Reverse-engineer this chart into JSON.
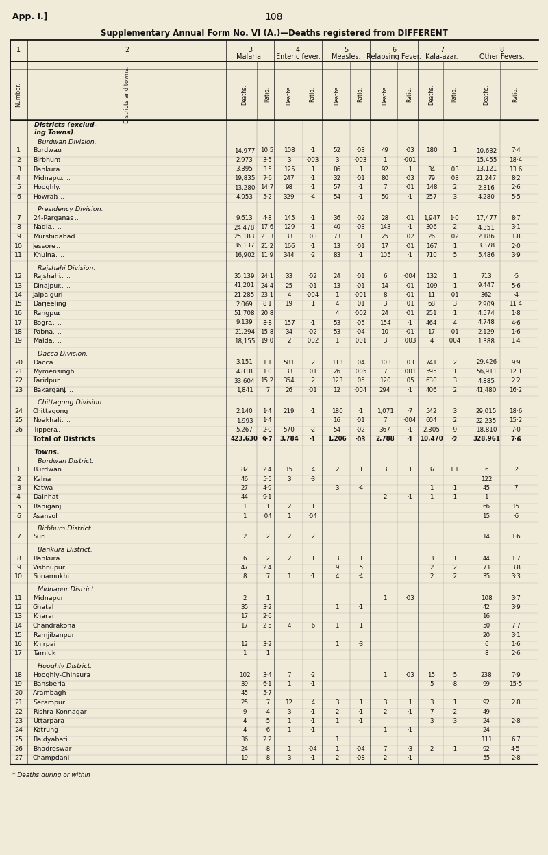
{
  "page_header_left": "App. I.]",
  "page_header_center": "108",
  "title": "Supplementary Annual Form No. VI (A.)—Deaths registered from DIFFERENT",
  "bg_color": "#f0ead8",
  "text_color": "#111111",
  "rows": [
    {
      "num": "1",
      "name": "Burdwan",
      "dots": true,
      "data": [
        "14,977",
        "10·5",
        "108",
        "·1",
        "52",
        "·03",
        "49",
        "·03",
        "180",
        "·1",
        "10,632",
        "7·4"
      ]
    },
    {
      "num": "2",
      "name": "Birbhum",
      "dots": true,
      "data": [
        "2,973",
        "3·5",
        "3",
        "·003",
        "3",
        "·003",
        "1",
        "·001",
        "",
        "",
        "15,455",
        "18·4"
      ]
    },
    {
      "num": "3",
      "name": "Bankura",
      "dots": true,
      "data": [
        "3,395",
        "3·5",
        "125",
        "·1",
        "86",
        "·1",
        "92",
        "·1",
        "34",
        "·03",
        "13,121",
        "13·6"
      ]
    },
    {
      "num": "4",
      "name": "Midnapur",
      "dots": true,
      "data": [
        "19,835",
        "7·6",
        "247",
        "·1",
        "32",
        "·01",
        "80",
        "·03",
        "79",
        "·03",
        "21,247",
        "8·2"
      ]
    },
    {
      "num": "5",
      "name": "Hooghly",
      "dots": true,
      "data": [
        "13,280",
        "14·7",
        "98",
        "·1",
        "57",
        "·1",
        "7",
        "·01",
        "148",
        "·2",
        "2,316",
        "2·6"
      ]
    },
    {
      "num": "6",
      "name": "Howrah",
      "dots": true,
      "data": [
        "4,053",
        "5·2",
        "329",
        "·4",
        "54",
        "·1",
        "50",
        "·1",
        "257",
        "·3",
        "4,280",
        "5·5"
      ]
    },
    {
      "num": "7",
      "name": "24-Parganas",
      "dots": true,
      "data": [
        "9,613",
        "4·8",
        "145",
        "·1",
        "36",
        "·02",
        "28",
        "·01",
        "1,947",
        "1·0",
        "17,477",
        "8·7"
      ]
    },
    {
      "num": "8",
      "name": "Nadia",
      "dots": true,
      "data": [
        "24,478",
        "17·6",
        "129",
        "·1",
        "40",
        "·03",
        "143",
        "·1",
        "306",
        "·2",
        "4,351",
        "3·1"
      ]
    },
    {
      "num": "9",
      "name": "Murshidabad",
      "dots": true,
      "data": [
        "25,183",
        "21·3",
        "33",
        "·03",
        "73",
        "·1",
        "25",
        "·02",
        "26",
        "·02",
        "2,186",
        "1·8"
      ]
    },
    {
      "num": "10",
      "name": "Jessore",
      "dots": true,
      "data": [
        "36,137",
        "21·2",
        "166",
        "·1",
        "13",
        "·01",
        "17",
        "·01",
        "167",
        "·1",
        "3,378",
        "2·0"
      ]
    },
    {
      "num": "11",
      "name": "Khulna",
      "dots": true,
      "data": [
        "16,902",
        "11·9",
        "344",
        "·2",
        "83",
        "·1",
        "105",
        "·1",
        "710",
        "·5",
        "5,486",
        "3·9"
      ]
    },
    {
      "num": "12",
      "name": "Rajshahi",
      "dots": true,
      "data": [
        "35,139",
        "24·1",
        "33",
        "·02",
        "24",
        "·01",
        "6",
        "·004",
        "132",
        "·1",
        "713",
        "·5"
      ]
    },
    {
      "num": "13",
      "name": "Dinajpur",
      "dots": true,
      "data": [
        "41,201",
        "24·4",
        "25",
        "·01",
        "13",
        "·01",
        "14",
        "·01",
        "109",
        "·1",
        "9,447",
        "5·6"
      ]
    },
    {
      "num": "14",
      "name": "Jalpaiguri",
      "dots": true,
      "data": [
        "21,285",
        "23·1",
        "4",
        "·004",
        "1",
        "·001",
        "8",
        "·01",
        "11",
        "·01",
        "362",
        "·4"
      ]
    },
    {
      "num": "15",
      "name": "Darjeeling",
      "dots": true,
      "data": [
        "2,069",
        "8·1",
        "19",
        "·1",
        "4",
        "·01",
        "3",
        "·01",
        "68",
        "·3",
        "2,909",
        "11·4"
      ]
    },
    {
      "num": "16",
      "name": "Rangpur",
      "dots": true,
      "data": [
        "51,708",
        "20·8",
        "",
        "",
        "4",
        "·002",
        "24",
        "·01",
        "251",
        "·1",
        "4,574",
        "1·8"
      ]
    },
    {
      "num": "17",
      "name": "Bogra",
      "dots": true,
      "data": [
        "9,139",
        "8·8",
        "157",
        "·1",
        "53",
        "·05",
        "154",
        "·1",
        "464",
        "·4",
        "4,748",
        "4·6"
      ]
    },
    {
      "num": "18",
      "name": "Pabna",
      "dots": true,
      "data": [
        "21,294",
        "15·8",
        "34",
        "·02",
        "53",
        "·04",
        "10",
        "·01",
        "17",
        "·01",
        "2,129",
        "1·6"
      ]
    },
    {
      "num": "19",
      "name": "Malda",
      "dots": true,
      "data": [
        "18,155",
        "19·0",
        "2",
        "·002",
        "1",
        "·001",
        "3",
        "·003",
        "4",
        "·004",
        "1,388",
        "1·4"
      ]
    },
    {
      "num": "20",
      "name": "Dacca",
      "dots": true,
      "data": [
        "3,151",
        "1·1",
        "581",
        "·2",
        "113",
        "·04",
        "103",
        "·03",
        "741",
        "·2",
        "29,426",
        "9·9"
      ]
    },
    {
      "num": "21",
      "name": "Mymensingh",
      "dots": true,
      "data": [
        "4,818",
        "1·0",
        "33",
        "·01",
        "26",
        "·005",
        "7",
        "·001",
        "595",
        "·1",
        "56,911",
        "12·1"
      ]
    },
    {
      "num": "22",
      "name": "Faridpur",
      "dots": true,
      "data": [
        "33,604",
        "15·2",
        "354",
        "·2",
        "123",
        "·05",
        "120",
        "·05",
        "630",
        "·3",
        "4,885",
        "2·2"
      ]
    },
    {
      "num": "23",
      "name": "Bakarganj",
      "dots": true,
      "data": [
        "1,841",
        "·7",
        "26",
        "·01",
        "12",
        "·004",
        "294",
        "·1",
        "406",
        "·2",
        "41,480",
        "16·2"
      ]
    },
    {
      "num": "24",
      "name": "Chittagong",
      "dots": true,
      "data": [
        "2,140",
        "1·4",
        "219",
        "·1",
        "180",
        "·1",
        "1,071",
        "·7",
        "542",
        "·3",
        "29,015",
        "18·6"
      ]
    },
    {
      "num": "25",
      "name": "Noakhali",
      "dots": true,
      "data": [
        "1,993",
        "1·4",
        "",
        "",
        "16",
        "·01",
        "7",
        "·004",
        "604",
        "·2",
        "22,235",
        "15·2"
      ]
    },
    {
      "num": "26",
      "name": "Tippera",
      "dots": true,
      "data": [
        "5,267",
        "2·0",
        "570",
        "·2",
        "54",
        "·02",
        "367",
        "·1",
        "2,305",
        "·9",
        "18,810",
        "7·0"
      ]
    },
    {
      "num": "",
      "name": "Total of Districts",
      "dots": false,
      "bold": true,
      "data": [
        "423,630",
        "9·7",
        "3,784",
        "·1",
        "1,206",
        "·03",
        "2,788",
        "·1",
        "10,470",
        "·2",
        "328,961",
        "7·6"
      ]
    },
    {
      "num": "1",
      "name": "Burdwan",
      "dots": false,
      "data": [
        "82",
        "2·4",
        "15",
        "·4",
        "2",
        "·1",
        "3",
        "·1",
        "37",
        "1·1",
        "6",
        "·2"
      ]
    },
    {
      "num": "2",
      "name": "Kalna",
      "dots": false,
      "data": [
        "46",
        "5·5",
        "3",
        "·3",
        "",
        "",
        "",
        "",
        "",
        "",
        "122",
        ""
      ]
    },
    {
      "num": "3",
      "name": "Katwa",
      "dots": false,
      "data": [
        "27",
        "4·9",
        "",
        "",
        "3",
        "·4",
        "",
        "",
        "1",
        "·1",
        "45",
        "7"
      ]
    },
    {
      "num": "4",
      "name": "Dainhat",
      "dots": false,
      "data": [
        "44",
        "9·1",
        "",
        "",
        "",
        "",
        "2",
        "·1",
        "1",
        "·1",
        "1",
        ""
      ]
    },
    {
      "num": "5",
      "name": "Raniganj",
      "dots": false,
      "data": [
        "1",
        "·1",
        "2",
        "·1",
        "",
        "",
        "",
        "",
        "",
        "",
        "66",
        "15"
      ]
    },
    {
      "num": "6",
      "name": "Asansol",
      "dots": false,
      "data": [
        "1",
        "·04",
        "1",
        "·04",
        "",
        "",
        "",
        "",
        "",
        "",
        "15",
        "·6"
      ]
    },
    {
      "num": "7",
      "name": "Suri",
      "dots": false,
      "data": [
        "2",
        "·2",
        "2",
        "·2",
        "",
        "",
        "",
        "",
        "",
        "",
        "14",
        "1·6"
      ]
    },
    {
      "num": "8",
      "name": "Bankura",
      "dots": false,
      "data": [
        "6",
        "·2",
        "2",
        "·1",
        "3",
        "·1",
        "",
        "",
        "3",
        "·1",
        "44",
        "1·7"
      ]
    },
    {
      "num": "9",
      "name": "Vishnupur",
      "dots": false,
      "data": [
        "47",
        "2·4",
        "",
        "",
        "9",
        "·5",
        "",
        "",
        "2",
        "·2",
        "73",
        "3·8"
      ]
    },
    {
      "num": "10",
      "name": "Sonamukhi",
      "dots": false,
      "data": [
        "8",
        "·7",
        "1",
        "·1",
        "4",
        "·4",
        "",
        "",
        "2",
        "·2",
        "35",
        "3·3"
      ]
    },
    {
      "num": "11",
      "name": "Midnapur",
      "dots": false,
      "data": [
        "2",
        "·1",
        "",
        "",
        "",
        "",
        "1",
        "·03",
        "",
        "",
        "108",
        "3·7"
      ]
    },
    {
      "num": "12",
      "name": "Ghatal",
      "dots": false,
      "data": [
        "35",
        "3·2",
        "",
        "",
        "1",
        "·1",
        "",
        "",
        "",
        "",
        "42",
        "3·9"
      ]
    },
    {
      "num": "13",
      "name": "Kharar",
      "dots": false,
      "data": [
        "17",
        "2·6",
        "",
        "",
        "",
        "",
        "",
        "",
        "",
        "",
        "16",
        ""
      ]
    },
    {
      "num": "14",
      "name": "Chandrakona",
      "dots": false,
      "data": [
        "17",
        "2·5",
        "4",
        "·6",
        "1",
        "·1",
        "",
        "",
        "",
        "",
        "50",
        "7·7"
      ]
    },
    {
      "num": "15",
      "name": "Ramjibanpur",
      "dots": false,
      "data": [
        "",
        "",
        "",
        "",
        "",
        "",
        "",
        "",
        "",
        "",
        "20",
        "3·1"
      ]
    },
    {
      "num": "16",
      "name": "Khirpai",
      "dots": false,
      "data": [
        "12",
        "3·2",
        "",
        "",
        "1",
        "·3",
        "",
        "",
        "",
        "",
        "6",
        "1·6"
      ]
    },
    {
      "num": "17",
      "name": "Tamluk",
      "dots": false,
      "data": [
        "1",
        "·1",
        "",
        "",
        "",
        "",
        "",
        "",
        "",
        "",
        "8",
        "2·6"
      ]
    },
    {
      "num": "18",
      "name": "Hooghly-Chinsura",
      "dots": false,
      "data": [
        "102",
        "3·4",
        "7",
        "·2",
        "",
        "",
        "1",
        "·03",
        "15",
        "·5",
        "238",
        "7·9"
      ]
    },
    {
      "num": "19",
      "name": "Bansberia",
      "dots": false,
      "data": [
        "39",
        "6·1",
        "1",
        "·1",
        "",
        "",
        "",
        "",
        "5",
        "·8",
        "99",
        "15·5"
      ]
    },
    {
      "num": "20",
      "name": "Arambagh",
      "dots": false,
      "data": [
        "45",
        "5·7",
        "",
        "",
        "",
        "",
        "",
        "",
        "",
        "",
        "",
        ""
      ]
    },
    {
      "num": "21",
      "name": "Serampur",
      "dots": false,
      "data": [
        "25",
        "·7",
        "12",
        "·4",
        "3",
        "·1",
        "3",
        "·1",
        "3",
        "·1",
        "92",
        "2·8"
      ]
    },
    {
      "num": "22",
      "name": "Rishra-Konnagar",
      "dots": false,
      "data": [
        "9",
        "·4",
        "3",
        "·1",
        "2",
        "·1",
        "2",
        "·1",
        "7",
        "·2",
        "49",
        ""
      ]
    },
    {
      "num": "23",
      "name": "Uttarpara",
      "dots": false,
      "data": [
        "4",
        "·5",
        "1",
        "·1",
        "1",
        "·1",
        "",
        "",
        "3",
        "·3",
        "24",
        "2·8"
      ]
    },
    {
      "num": "24",
      "name": "Kotrung",
      "dots": false,
      "data": [
        "4",
        "·6",
        "1",
        "·1",
        "",
        "",
        "1",
        "·1",
        "",
        "",
        "24",
        ""
      ]
    },
    {
      "num": "25",
      "name": "Baidyabati",
      "dots": false,
      "data": [
        "36",
        "2·2",
        "",
        "",
        "1",
        "",
        "",
        "",
        "",
        "",
        "111",
        "6·7"
      ]
    },
    {
      "num": "26",
      "name": "Bhadreswar",
      "dots": false,
      "data": [
        "24",
        "·8",
        "1",
        "·04",
        "1",
        "·04",
        "7",
        "·3",
        "2",
        "·1",
        "92",
        "4·5"
      ]
    },
    {
      "num": "27",
      "name": "Champdani",
      "dots": false,
      "data": [
        "19",
        "·8",
        "3",
        "·1",
        "2",
        "·08",
        "2",
        "·1",
        "",
        "",
        "55",
        "2·8"
      ]
    }
  ],
  "footer": "* Deaths during or within"
}
